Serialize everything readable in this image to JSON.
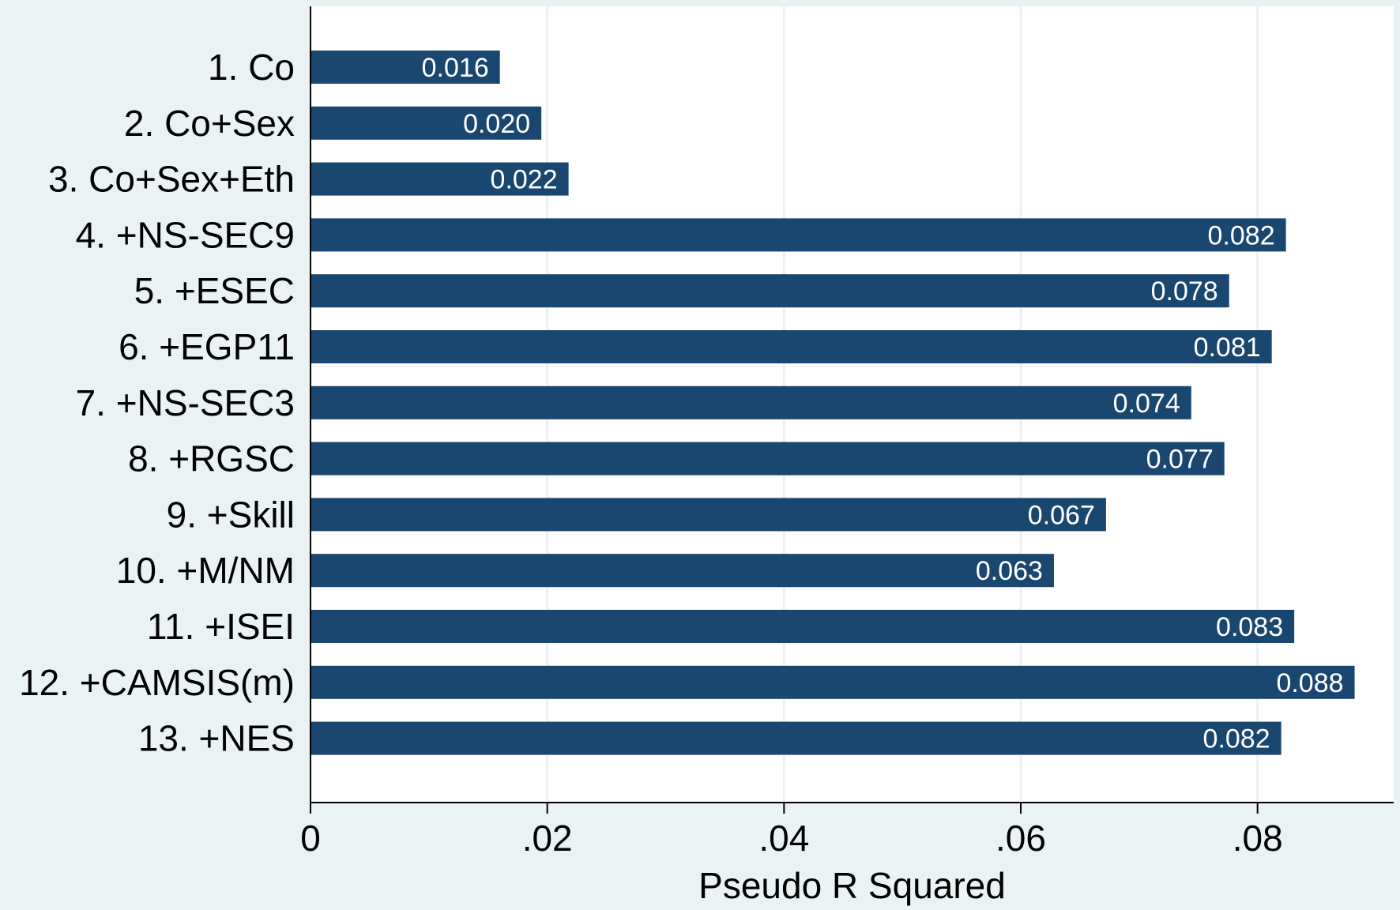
{
  "colors": {
    "background": "#eaf2f3",
    "plot_area": "#ffffff",
    "bar": "#1a476f",
    "grid": "#eaf2f3",
    "axis": "#000000",
    "bar_label": "#ffffff"
  },
  "chart_data": {
    "type": "bar",
    "orientation": "horizontal",
    "categories": [
      "1. Co",
      "2. Co+Sex",
      "3. Co+Sex+Eth",
      "4. +NS-SEC9",
      "5. +ESEC",
      "6. +EGP11",
      "7. +NS-SEC3",
      "8. +RGSC",
      "9. +Skill",
      "10. +M/NM",
      "11. +ISEI",
      "12. +CAMSIS(m)",
      "13. +NES"
    ],
    "values": [
      0.016,
      0.0195,
      0.0218,
      0.0824,
      0.0776,
      0.0812,
      0.0744,
      0.0772,
      0.0672,
      0.0628,
      0.0831,
      0.0882,
      0.082
    ],
    "data_labels": [
      "0.016",
      "0.020",
      "0.022",
      "0.082",
      "0.078",
      "0.081",
      "0.074",
      "0.077",
      "0.067",
      "0.063",
      "0.083",
      "0.088",
      "0.082"
    ],
    "xlabel": "Pseudo R Squared",
    "ylabel": "",
    "xlim": [
      0,
      0.0915
    ],
    "x_ticks": [
      0,
      0.02,
      0.04,
      0.06,
      0.08
    ],
    "x_tick_labels": [
      "0",
      ".02",
      ".04",
      ".06",
      ".08"
    ],
    "grid": true,
    "legend": "none"
  }
}
